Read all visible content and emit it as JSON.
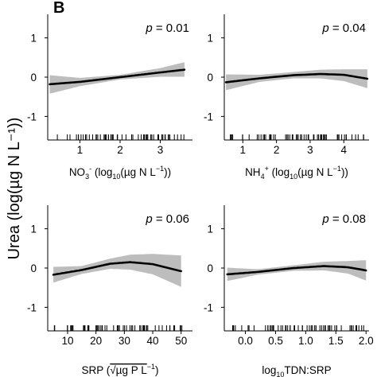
{
  "figure": {
    "panel_letter": "B",
    "y_label": "Urea (log(µg N L⁻¹))"
  },
  "chart_data": [
    {
      "type": "line",
      "id": "no3",
      "p_label": "p",
      "p_value": " = 0.01",
      "xlabel_parts": [
        {
          "t": "NO"
        },
        {
          "t": "3",
          "sub": true
        },
        {
          "t": "-",
          "sup": true
        },
        {
          "t": " (log"
        },
        {
          "t": "10",
          "sub": true
        },
        {
          "t": "(µg N L"
        },
        {
          "t": "−1",
          "sup": true
        },
        {
          "t": "))"
        }
      ],
      "xlim": [
        0.2,
        3.8
      ],
      "ylim": [
        -1.6,
        1.6
      ],
      "xticks": [
        1,
        2,
        3
      ],
      "xtick_labels": [
        "1",
        "2",
        "3"
      ],
      "yticks": [
        -1,
        0,
        1
      ],
      "ytick_labels": [
        "-1",
        "0",
        "1"
      ],
      "fit": {
        "x": [
          0.25,
          1.0,
          2.0,
          3.0,
          3.6
        ],
        "y": [
          -0.18,
          -0.12,
          0.0,
          0.12,
          0.19
        ]
      },
      "ci_upper": [
        0.05,
        -0.02,
        0.06,
        0.23,
        0.38
      ],
      "ci_lower": [
        -0.42,
        -0.23,
        -0.06,
        0.01,
        0.01
      ],
      "rug_range": [
        0.35,
        3.6
      ]
    },
    {
      "type": "line",
      "id": "nh4",
      "p_label": "p",
      "p_value": " = 0.04",
      "xlabel_parts": [
        {
          "t": "NH"
        },
        {
          "t": "4",
          "sub": true
        },
        {
          "t": "+",
          "sup": true
        },
        {
          "t": " (log"
        },
        {
          "t": "10",
          "sub": true
        },
        {
          "t": "(µg N L"
        },
        {
          "t": "−1",
          "sup": true
        },
        {
          "t": "))"
        }
      ],
      "xlim": [
        0.45,
        4.75
      ],
      "ylim": [
        -1.6,
        1.6
      ],
      "xticks": [
        1,
        2,
        3,
        4
      ],
      "xtick_labels": [
        "1",
        "2",
        "3",
        "4"
      ],
      "yticks": [
        -1,
        0,
        1
      ],
      "ytick_labels": [
        "-1",
        "0",
        "1"
      ],
      "fit": {
        "x": [
          0.5,
          1.5,
          2.5,
          3.3,
          4.0,
          4.7
        ],
        "y": [
          -0.13,
          -0.03,
          0.05,
          0.08,
          0.06,
          -0.04
        ]
      },
      "ci_upper": [
        0.07,
        0.06,
        0.13,
        0.19,
        0.2,
        0.2
      ],
      "ci_lower": [
        -0.33,
        -0.12,
        -0.03,
        -0.03,
        -0.1,
        -0.28
      ],
      "rug_range": [
        0.6,
        4.6
      ]
    },
    {
      "type": "line",
      "id": "srp",
      "p_label": "p",
      "p_value": " = 0.06",
      "xlabel_parts": [
        {
          "t": "SRP ("
        },
        {
          "t": "√µg P L",
          "rad": true
        },
        {
          "t": "−1",
          "sup": true
        },
        {
          "t": ")"
        }
      ],
      "xlim": [
        3,
        54
      ],
      "ylim": [
        -1.6,
        1.6
      ],
      "xticks": [
        10,
        20,
        30,
        40,
        50
      ],
      "xtick_labels": [
        "10",
        "20",
        "30",
        "40",
        "50"
      ],
      "yticks": [
        -1,
        0,
        1
      ],
      "ytick_labels": [
        "-1",
        "0",
        "1"
      ],
      "fit": {
        "x": [
          5,
          15,
          25,
          32,
          40,
          50
        ],
        "y": [
          -0.17,
          -0.05,
          0.11,
          0.15,
          0.1,
          -0.08
        ]
      },
      "ci_upper": [
        0.03,
        0.05,
        0.24,
        0.34,
        0.36,
        0.32
      ],
      "ci_lower": [
        -0.37,
        -0.15,
        -0.02,
        -0.04,
        -0.16,
        -0.48
      ],
      "rug_range": [
        5,
        51
      ]
    },
    {
      "type": "line",
      "id": "tdn_srp",
      "p_label": "p",
      "p_value": " = 0.08",
      "xlabel_parts": [
        {
          "t": "log"
        },
        {
          "t": "10",
          "sub": true
        },
        {
          "t": "TDN:SRP"
        }
      ],
      "xlim": [
        -0.35,
        2.05
      ],
      "ylim": [
        -1.6,
        1.6
      ],
      "xticks": [
        0.0,
        0.5,
        1.0,
        1.5,
        2.0
      ],
      "xtick_labels": [
        "0.0",
        "0.5",
        "1.0",
        "1.5",
        "2.0"
      ],
      "yticks": [
        -1,
        0,
        1
      ],
      "ytick_labels": [
        "-1",
        "0",
        "1"
      ],
      "fit": {
        "x": [
          -0.3,
          0.2,
          0.8,
          1.3,
          1.7,
          2.0
        ],
        "y": [
          -0.16,
          -0.1,
          0.0,
          0.05,
          0.02,
          -0.06
        ]
      },
      "ci_upper": [
        0.01,
        -0.03,
        0.07,
        0.16,
        0.18,
        0.2
      ],
      "ci_lower": [
        -0.33,
        -0.17,
        -0.07,
        -0.06,
        -0.14,
        -0.32
      ],
      "rug_range": [
        -0.28,
        1.98
      ]
    }
  ]
}
